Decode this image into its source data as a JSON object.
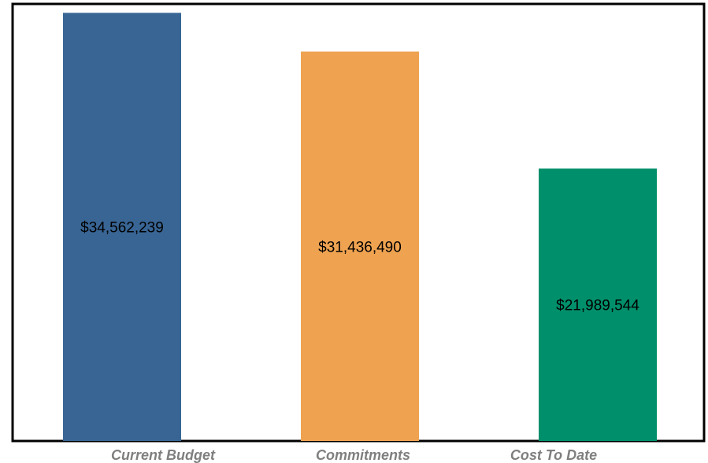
{
  "chart_data": {
    "type": "bar",
    "categories": [
      "Current Budget",
      "Commitments",
      "Cost To Date"
    ],
    "values": [
      34562239,
      31436490,
      21989544
    ],
    "value_labels": [
      "$34,562,239",
      "$31,436,490",
      "$21,989,544"
    ],
    "colors": [
      "#386594",
      "#efa351",
      "#008f6b"
    ],
    "title": "",
    "xlabel": "",
    "ylabel": "",
    "ylim": [
      0,
      34900000
    ],
    "grid": false,
    "legend": "none"
  }
}
